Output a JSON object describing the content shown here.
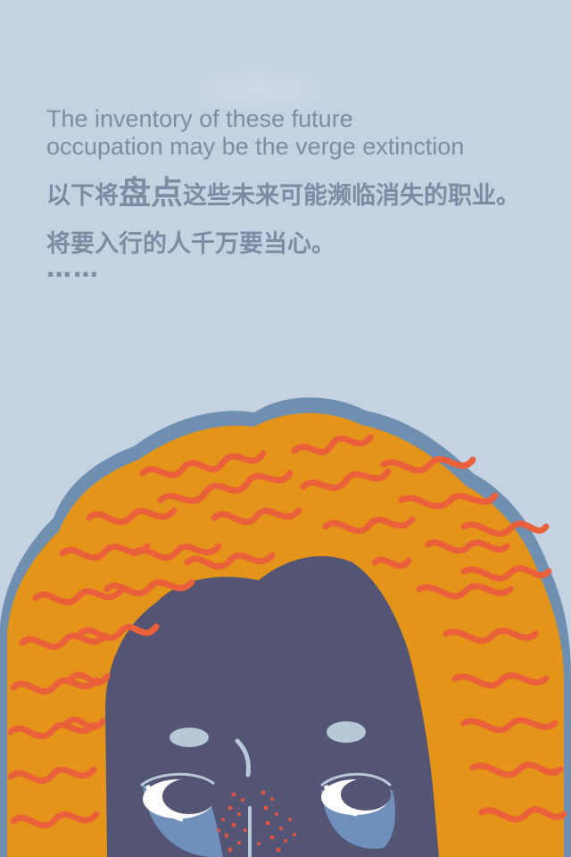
{
  "intro": {
    "en_line1": "The inventory of these future",
    "en_line2": "occupation may be the verge extinction",
    "zh_before": "以下将",
    "zh_emphasis": "盘点",
    "zh_after": "这些未来可能濒临消失的职业。将要入行的人千万要当心。",
    "ellipsis": "……"
  },
  "illustration": {
    "subject": "curly-haired-face",
    "colors": {
      "background": "#c5d2e2",
      "text": "#7c8da3",
      "hair_outline": "#6f8fb0",
      "hair_fill": "#e49418",
      "hair_curls": "#e9603a",
      "face": "#545574",
      "eyebrow": "#b7c9d6",
      "eye_white": "#ffffff",
      "eye_bag": "#6f90bb",
      "freckles": "#e0553f"
    }
  }
}
